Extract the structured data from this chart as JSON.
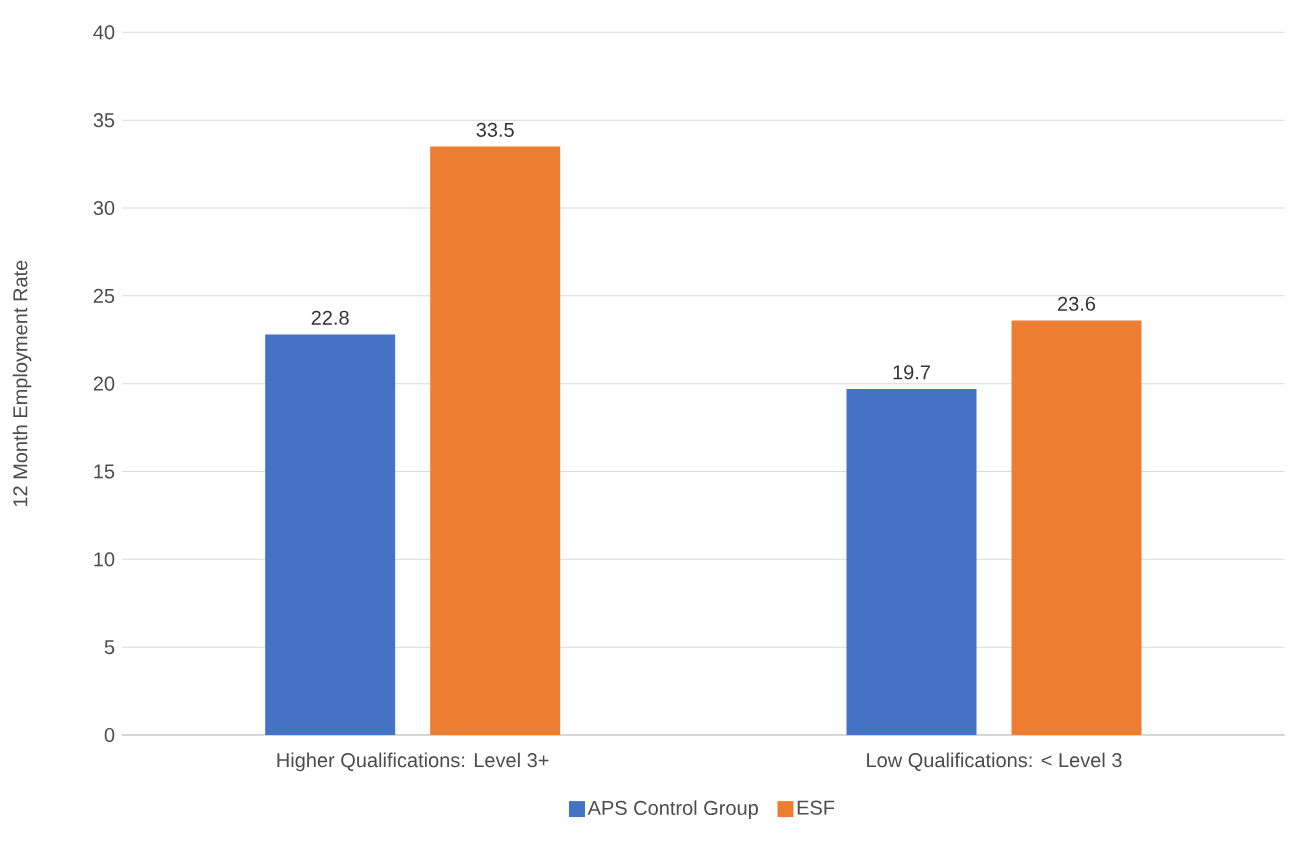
{
  "chart_data": {
    "type": "bar",
    "ylabel": "12 Month Employment Rate",
    "categories": [
      "Higher Qualifications: Level 3+",
      "Low Qualifications: < Level 3"
    ],
    "series": [
      {
        "name": "APS Control Group",
        "color": "#4472c4",
        "values": [
          22.8,
          19.7
        ]
      },
      {
        "name": "ESF",
        "color": "#ed7d31",
        "values": [
          33.5,
          23.6
        ]
      }
    ],
    "ylim": [
      0,
      40
    ],
    "yticks": [
      0,
      5,
      10,
      15,
      20,
      25,
      30,
      35,
      40
    ],
    "grid": "y",
    "legend": "bottom",
    "data_labels": true
  }
}
